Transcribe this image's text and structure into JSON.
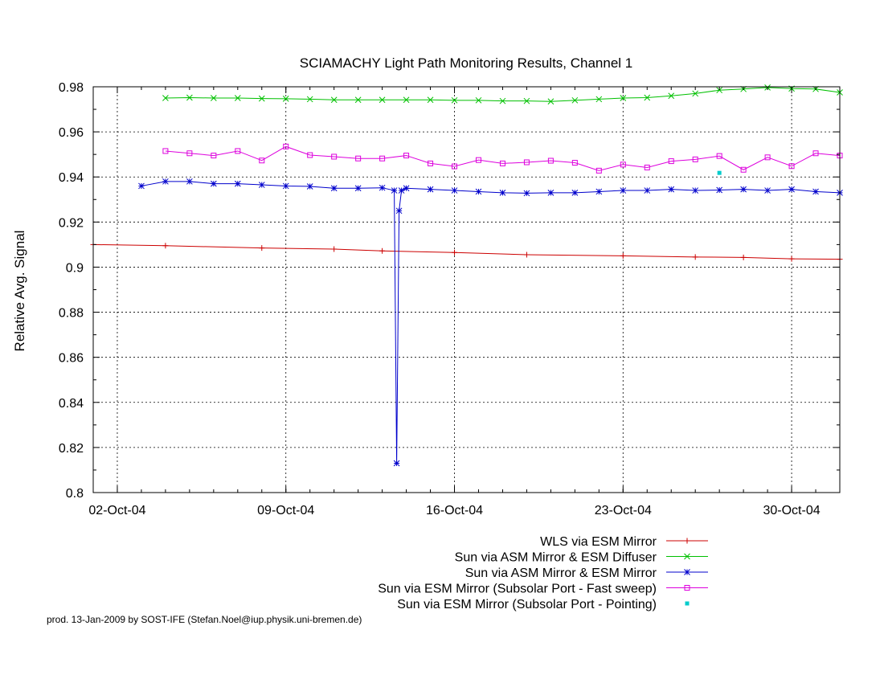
{
  "chart_data": {
    "type": "line",
    "title": "SCIAMACHY Light Path Monitoring Results, Channel 1",
    "ylabel": "Relative Avg. Signal",
    "xlabel": "",
    "footer": "prod. 13-Jan-2009 by SOST-IFE (Stefan.Noel@iup.physik.uni-bremen.de)",
    "grid": true,
    "legend_position": "bottom-center",
    "xlim": [
      "2004-10-01",
      "2004-11-01"
    ],
    "ylim": [
      0.8,
      0.98
    ],
    "y_ticks": [
      "0.8",
      "0.82",
      "0.84",
      "0.86",
      "0.88",
      "0.9",
      "0.92",
      "0.94",
      "0.96",
      "0.98"
    ],
    "x_ticks": [
      {
        "date": "2004-10-02",
        "label": "02-Oct-04"
      },
      {
        "date": "2004-10-09",
        "label": "09-Oct-04"
      },
      {
        "date": "2004-10-16",
        "label": "16-Oct-04"
      },
      {
        "date": "2004-10-23",
        "label": "23-Oct-04"
      },
      {
        "date": "2004-10-30",
        "label": "30-Oct-04"
      }
    ],
    "series": [
      {
        "name": "WLS via ESM Mirror",
        "color": "#cc0000",
        "marker": "plus",
        "style": "line",
        "points": [
          [
            "2004-10-01",
            0.91
          ],
          [
            "2004-10-04",
            0.9095
          ],
          [
            "2004-10-08",
            0.9085
          ],
          [
            "2004-10-11",
            0.908
          ],
          [
            "2004-10-13",
            0.9072
          ],
          [
            "2004-10-16",
            0.9065
          ],
          [
            "2004-10-19",
            0.9055
          ],
          [
            "2004-10-23",
            0.905
          ],
          [
            "2004-10-26",
            0.9045
          ],
          [
            "2004-10-28",
            0.9043
          ],
          [
            "2004-10-30",
            0.9037
          ],
          [
            "2004-11-01",
            0.9035
          ]
        ]
      },
      {
        "name": "Sun via ASM Mirror & ESM Diffuser",
        "color": "#00c000",
        "marker": "cross",
        "style": "line",
        "points": [
          [
            "2004-10-04",
            0.975
          ],
          [
            "2004-10-05",
            0.9752
          ],
          [
            "2004-10-06",
            0.975
          ],
          [
            "2004-10-07",
            0.975
          ],
          [
            "2004-10-08",
            0.9748
          ],
          [
            "2004-10-09",
            0.9747
          ],
          [
            "2004-10-10",
            0.9745
          ],
          [
            "2004-10-11",
            0.9742
          ],
          [
            "2004-10-12",
            0.9742
          ],
          [
            "2004-10-13",
            0.9742
          ],
          [
            "2004-10-14",
            0.9742
          ],
          [
            "2004-10-15",
            0.9742
          ],
          [
            "2004-10-16",
            0.974
          ],
          [
            "2004-10-17",
            0.974
          ],
          [
            "2004-10-18",
            0.9737
          ],
          [
            "2004-10-19",
            0.9737
          ],
          [
            "2004-10-20",
            0.9735
          ],
          [
            "2004-10-21",
            0.974
          ],
          [
            "2004-10-22",
            0.9745
          ],
          [
            "2004-10-23",
            0.975
          ],
          [
            "2004-10-24",
            0.9752
          ],
          [
            "2004-10-25",
            0.976
          ],
          [
            "2004-10-26",
            0.977
          ],
          [
            "2004-10-27",
            0.9785
          ],
          [
            "2004-10-28",
            0.979
          ],
          [
            "2004-10-29",
            0.9797
          ],
          [
            "2004-10-30",
            0.9792
          ],
          [
            "2004-10-31",
            0.979
          ],
          [
            "2004-11-01",
            0.9775
          ]
        ]
      },
      {
        "name": "Sun via ASM Mirror & ESM Mirror",
        "color": "#0000cc",
        "marker": "star",
        "style": "line",
        "points": [
          [
            "2004-10-03",
            0.936
          ],
          [
            "2004-10-04",
            0.938
          ],
          [
            "2004-10-05",
            0.938
          ],
          [
            "2004-10-06",
            0.937
          ],
          [
            "2004-10-07",
            0.937
          ],
          [
            "2004-10-08",
            0.9365
          ],
          [
            "2004-10-09",
            0.936
          ],
          [
            "2004-10-10",
            0.9358
          ],
          [
            "2004-10-11",
            0.935
          ],
          [
            "2004-10-12",
            0.935
          ],
          [
            "2004-10-13",
            0.9352
          ],
          [
            "2004-10-13.5",
            0.934
          ],
          [
            "2004-10-13.6",
            0.813
          ],
          [
            "2004-10-13.7",
            0.925
          ],
          [
            "2004-10-13.8",
            0.934
          ],
          [
            "2004-10-14",
            0.935
          ],
          [
            "2004-10-15",
            0.9345
          ],
          [
            "2004-10-16",
            0.934
          ],
          [
            "2004-10-17",
            0.9335
          ],
          [
            "2004-10-18",
            0.933
          ],
          [
            "2004-10-19",
            0.9328
          ],
          [
            "2004-10-20",
            0.933
          ],
          [
            "2004-10-21",
            0.933
          ],
          [
            "2004-10-22",
            0.9335
          ],
          [
            "2004-10-23",
            0.934
          ],
          [
            "2004-10-24",
            0.934
          ],
          [
            "2004-10-25",
            0.9345
          ],
          [
            "2004-10-26",
            0.934
          ],
          [
            "2004-10-27",
            0.9342
          ],
          [
            "2004-10-28",
            0.9345
          ],
          [
            "2004-10-29",
            0.934
          ],
          [
            "2004-10-30",
            0.9345
          ],
          [
            "2004-10-31",
            0.9335
          ],
          [
            "2004-11-01",
            0.933
          ]
        ]
      },
      {
        "name": "Sun via ESM Mirror (Subsolar Port - Fast sweep)",
        "color": "#dd00dd",
        "marker": "square",
        "style": "line",
        "points": [
          [
            "2004-10-04",
            0.9515
          ],
          [
            "2004-10-05",
            0.9505
          ],
          [
            "2004-10-06",
            0.9495
          ],
          [
            "2004-10-07",
            0.9515
          ],
          [
            "2004-10-08",
            0.9473
          ],
          [
            "2004-10-09",
            0.9535
          ],
          [
            "2004-10-10",
            0.9497
          ],
          [
            "2004-10-11",
            0.949
          ],
          [
            "2004-10-12",
            0.9482
          ],
          [
            "2004-10-13",
            0.9482
          ],
          [
            "2004-10-14",
            0.9495
          ],
          [
            "2004-10-15",
            0.946
          ],
          [
            "2004-10-16",
            0.9447
          ],
          [
            "2004-10-17",
            0.9475
          ],
          [
            "2004-10-18",
            0.946
          ],
          [
            "2004-10-19",
            0.9465
          ],
          [
            "2004-10-20",
            0.9472
          ],
          [
            "2004-10-21",
            0.9463
          ],
          [
            "2004-10-22",
            0.9428
          ],
          [
            "2004-10-23",
            0.9455
          ],
          [
            "2004-10-24",
            0.9442
          ],
          [
            "2004-10-25",
            0.947
          ],
          [
            "2004-10-26",
            0.9478
          ],
          [
            "2004-10-27",
            0.9493
          ],
          [
            "2004-10-28",
            0.9432
          ],
          [
            "2004-10-29",
            0.9487
          ],
          [
            "2004-10-30",
            0.9448
          ],
          [
            "2004-10-31",
            0.9505
          ],
          [
            "2004-11-01",
            0.9495
          ]
        ]
      },
      {
        "name": "Sun via ESM Mirror (Subsolar Port - Pointing)",
        "color": "#00cccc",
        "marker": "dot",
        "style": "points",
        "points": [
          [
            "2004-10-27",
            0.9418
          ]
        ]
      }
    ]
  }
}
